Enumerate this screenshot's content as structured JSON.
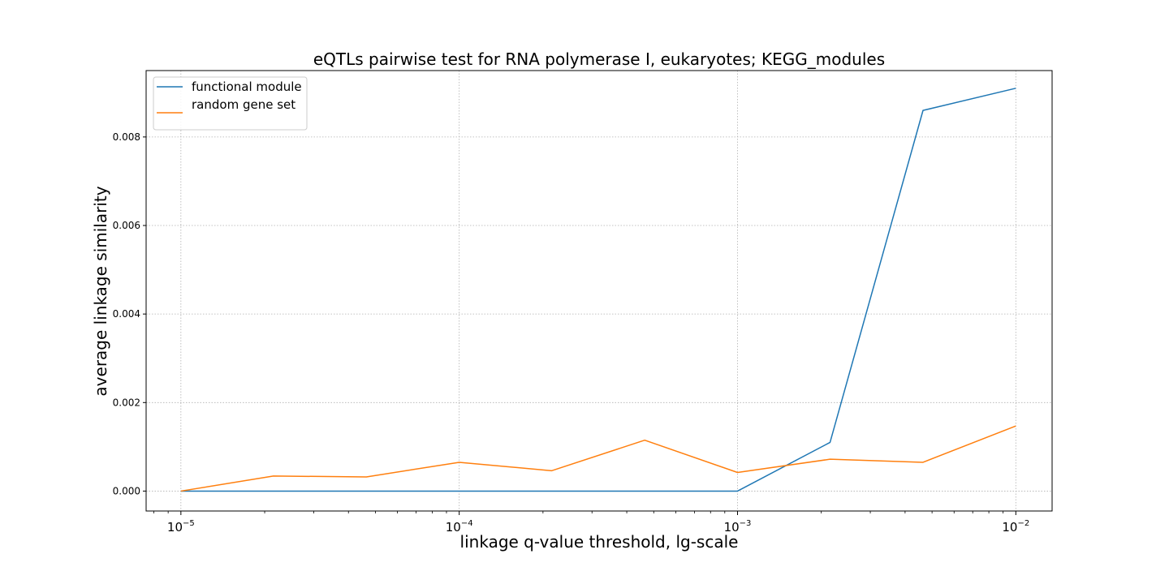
{
  "chart_data": {
    "type": "line",
    "title": "eQTLs pairwise test for RNA polymerase I, eukaryotes; KEGG_modules",
    "xlabel": "linkage q-value threshold, lg-scale",
    "ylabel": "average linkage similarity",
    "xscale": "log",
    "xlim": [
      7.5e-06,
      0.0135
    ],
    "ylim": [
      -0.00045,
      0.0095
    ],
    "x": [
      1e-05,
      2.15e-05,
      4.64e-05,
      0.0001,
      0.000215,
      0.000464,
      0.001,
      0.00215,
      0.00464,
      0.01
    ],
    "x_ticks": [
      {
        "value": 1e-05,
        "base": "10",
        "exp": "−5"
      },
      {
        "value": 0.0001,
        "base": "10",
        "exp": "−4"
      },
      {
        "value": 0.001,
        "base": "10",
        "exp": "−3"
      },
      {
        "value": 0.01,
        "base": "10",
        "exp": "−2"
      }
    ],
    "y_ticks": [
      {
        "value": 0.0,
        "label": "0.000"
      },
      {
        "value": 0.002,
        "label": "0.002"
      },
      {
        "value": 0.004,
        "label": "0.004"
      },
      {
        "value": 0.006,
        "label": "0.006"
      },
      {
        "value": 0.008,
        "label": "0.008"
      }
    ],
    "grid": true,
    "legend_position": "top-left",
    "series": [
      {
        "name": "functional module",
        "color": "#1f77b4",
        "values": [
          0.0,
          0.0,
          0.0,
          0.0,
          0.0,
          0.0,
          0.0,
          0.0011,
          0.0086,
          0.0091
        ]
      },
      {
        "name": "random gene set",
        "color": "#ff7f0e",
        "values": [
          0.0,
          0.00034,
          0.00032,
          0.00065,
          0.00046,
          0.00115,
          0.00042,
          0.00072,
          0.00065,
          0.00147
        ]
      }
    ]
  }
}
